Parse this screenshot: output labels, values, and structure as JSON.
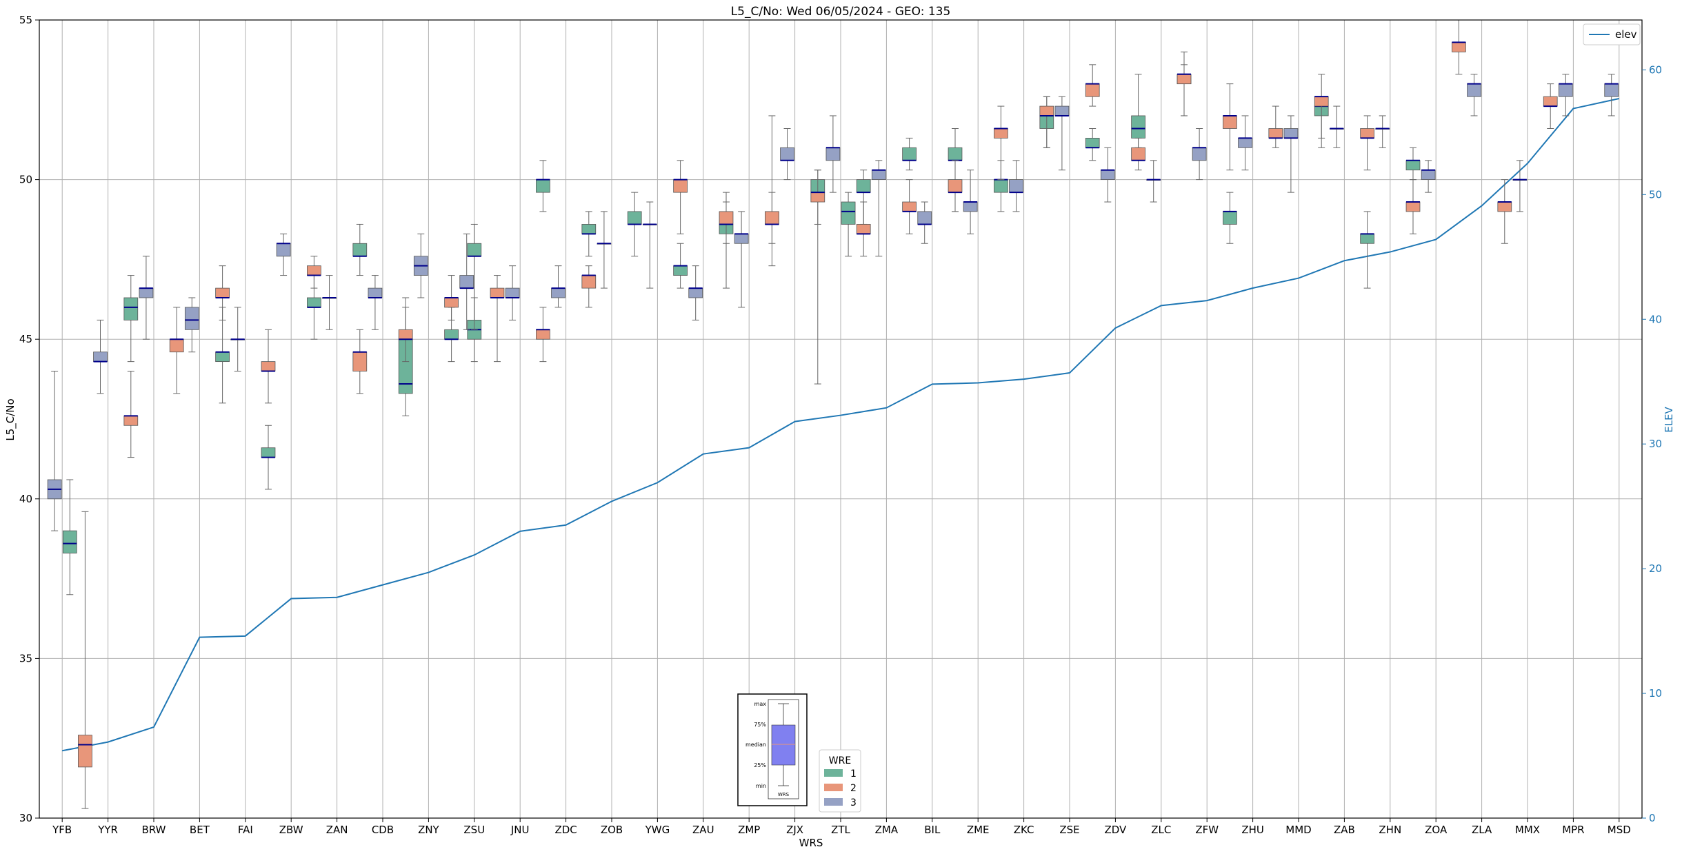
{
  "chart_data": {
    "type": "box",
    "title": "L5_C/No: Wed 06/05/2024 - GEO: 135",
    "xlabel": "WRS",
    "ylabel": "L5_C/No",
    "y2label": "ELEV",
    "ylim": [
      30,
      55
    ],
    "y2lim": [
      0,
      64
    ],
    "yticks": [
      30,
      35,
      40,
      45,
      50,
      55
    ],
    "y2ticks": [
      0,
      10,
      20,
      30,
      40,
      50,
      60
    ],
    "grid": true,
    "categories": [
      "YFB",
      "YYR",
      "BRW",
      "BET",
      "FAI",
      "ZBW",
      "ZAN",
      "CDB",
      "ZNY",
      "ZSU",
      "JNU",
      "ZDC",
      "ZOB",
      "YWG",
      "ZAU",
      "ZMP",
      "ZJX",
      "ZTL",
      "ZMA",
      "BIL",
      "ZME",
      "ZKC",
      "ZSE",
      "ZDV",
      "ZLC",
      "ZFW",
      "ZHU",
      "MMD",
      "ZAB",
      "ZHN",
      "ZOA",
      "ZLA",
      "MMX",
      "MPR",
      "MSD"
    ],
    "colors": {
      "1": "#6db39a",
      "2": "#e8967a",
      "3": "#95a1c4",
      "median": "#00008b",
      "whisker": "#666666",
      "elev": "#1f77b4",
      "axis2": "#1f77b4"
    },
    "boxes": {
      "1": [
        [
          37,
          38.3,
          38.6,
          39,
          40.6
        ],
        [
          44.3,
          45.6,
          46,
          46.3,
          47
        ],
        [
          43,
          44.3,
          44.6,
          44.6,
          46
        ],
        [
          40.3,
          41.3,
          41.3,
          41.6,
          42.3
        ],
        [
          45,
          46,
          46,
          46.3,
          47
        ],
        [
          47,
          47.6,
          47.6,
          48,
          48.6
        ],
        [
          42.6,
          43.3,
          43.6,
          45,
          46.3
        ],
        [
          44.3,
          45,
          45,
          45.3,
          46
        ],
        [
          44.3,
          45,
          45.3,
          45.6,
          46.3
        ],
        [
          45.3,
          47.6,
          47.6,
          48,
          48.6
        ],
        [
          49,
          49.6,
          50,
          50,
          50.6
        ],
        [
          47.6,
          48.3,
          48.3,
          48.6,
          49
        ],
        [
          47.6,
          48.6,
          48.6,
          49,
          49.6
        ],
        [
          46.6,
          47,
          47.3,
          47.3,
          48
        ],
        [
          46.6,
          48.3,
          48.6,
          48.6,
          49.3
        ],
        [
          47.3,
          48.6,
          48.6,
          49,
          49.6
        ],
        [
          48.6,
          49.6,
          49.6,
          50,
          50.3
        ],
        [
          47.6,
          48.6,
          49,
          49.3,
          49.6
        ],
        [
          48.6,
          49.6,
          49.6,
          50,
          50.3
        ],
        [
          50.3,
          50.6,
          50.6,
          51,
          51.3
        ],
        [
          49,
          50.6,
          50.6,
          51,
          51.6
        ],
        [
          49,
          49.6,
          50,
          50,
          50.6
        ],
        [
          51,
          51.6,
          52,
          52,
          52.6
        ],
        [
          50.6,
          51,
          51,
          51.3,
          51.6
        ],
        [
          51,
          51.3,
          51.6,
          52,
          53.3
        ],
        [
          52,
          53,
          53.3,
          53.3,
          53.6
        ],
        [
          48,
          48.6,
          49,
          49,
          49.6
        ],
        [
          51.3,
          52,
          52.3,
          52.3,
          52.6
        ],
        [
          46.6,
          48,
          48.3,
          48.3,
          49
        ],
        [
          50,
          50.3,
          50.6,
          50.6,
          51
        ]
      ],
      "2": [
        [
          30.3,
          31.6,
          32.3,
          32.6,
          39.6
        ],
        [
          41.3,
          42.3,
          42.6,
          42.6,
          44
        ],
        [
          43.3,
          44.6,
          45,
          45,
          46
        ],
        [
          45.6,
          46.3,
          46.3,
          46.6,
          47.3
        ],
        [
          43,
          44,
          44,
          44.3,
          45.3
        ],
        [
          46.6,
          47,
          47,
          47.3,
          47.6
        ],
        [
          43.3,
          44,
          44.6,
          44.6,
          45.3
        ],
        [
          44.3,
          45,
          45,
          45.3,
          46
        ],
        [
          45.6,
          46,
          46.3,
          46.3,
          47
        ],
        [
          44.3,
          46.3,
          46.3,
          46.6,
          47
        ],
        [
          44.3,
          45,
          45.3,
          45.3,
          46
        ],
        [
          46,
          46.6,
          47,
          47,
          47.3
        ],
        [
          48.3,
          49.6,
          50,
          50,
          50.6
        ],
        [
          48,
          48.6,
          48.6,
          49,
          49.6
        ],
        [
          48,
          48.6,
          48.6,
          49,
          52
        ],
        [
          43.6,
          49.3,
          49.6,
          49.6,
          50.3
        ],
        [
          47.6,
          48.3,
          48.3,
          48.6,
          49.3
        ],
        [
          48.3,
          49,
          49,
          49.3,
          50
        ],
        [
          49,
          49.6,
          49.6,
          50,
          50.6
        ],
        [
          50,
          51.3,
          51.6,
          51.6,
          52.3
        ],
        [
          51,
          52,
          52,
          52.3,
          52.6
        ],
        [
          52.3,
          52.6,
          53,
          53,
          53.6
        ],
        [
          50.3,
          50.6,
          50.6,
          51,
          51.3
        ],
        [
          52,
          53,
          53.3,
          53.3,
          54
        ],
        [
          50.3,
          51.6,
          52,
          52,
          53
        ],
        [
          51,
          51.3,
          51.3,
          51.6,
          52.3
        ],
        [
          51,
          52.3,
          52.6,
          52.6,
          53.3
        ],
        [
          50.3,
          51.3,
          51.3,
          51.6,
          52
        ],
        [
          48.3,
          49,
          49.3,
          49.3,
          50
        ],
        [
          53.3,
          54,
          54.3,
          54.3,
          55
        ],
        [
          48,
          49,
          49.3,
          49.3,
          50
        ],
        [
          51.6,
          52.3,
          52.3,
          52.6,
          53
        ]
      ],
      "3": [
        [
          39,
          40,
          40.3,
          40.6,
          44
        ],
        [
          43.3,
          44.3,
          44.3,
          44.6,
          45.6
        ],
        [
          45,
          46.3,
          46.6,
          46.6,
          47.6
        ],
        [
          44.6,
          45.3,
          45.6,
          46,
          46.3
        ],
        [
          44,
          45,
          45,
          45,
          46
        ],
        [
          47,
          47.6,
          48,
          48,
          48.3
        ],
        [
          45.3,
          46.3,
          46.3,
          46.3,
          47
        ],
        [
          45.3,
          46.3,
          46.3,
          46.6,
          47
        ],
        [
          46.3,
          47,
          47.3,
          47.6,
          48.3
        ],
        [
          45.3,
          46.6,
          46.6,
          47,
          48.3
        ],
        [
          45.6,
          46.3,
          46.3,
          46.6,
          47.3
        ],
        [
          46,
          46.3,
          46.6,
          46.6,
          47.3
        ],
        [
          46.6,
          48,
          48,
          48,
          49
        ],
        [
          46.6,
          48.6,
          48.6,
          48.6,
          49.3
        ],
        [
          45.6,
          46.3,
          46.6,
          46.6,
          47.3
        ],
        [
          46,
          48,
          48.3,
          48.3,
          49
        ],
        [
          50,
          50.6,
          50.6,
          51,
          51.6
        ],
        [
          49.6,
          50.6,
          51,
          51,
          52
        ],
        [
          47.6,
          50,
          50.3,
          50.3,
          50.6
        ],
        [
          48,
          48.6,
          48.6,
          49,
          49.3
        ],
        [
          48.3,
          49,
          49.3,
          49.3,
          50.3
        ],
        [
          49,
          49.6,
          49.6,
          50,
          50.6
        ],
        [
          50.3,
          52,
          52,
          52.3,
          52.6
        ],
        [
          49.3,
          50,
          50.3,
          50.3,
          51
        ],
        [
          49.3,
          50,
          50,
          50,
          50.6
        ],
        [
          50,
          50.6,
          51,
          51,
          51.6
        ],
        [
          50.3,
          51,
          51.3,
          51.3,
          52
        ],
        [
          49.6,
          51.3,
          51.3,
          51.6,
          52
        ],
        [
          51,
          51.6,
          51.6,
          51.6,
          52.3
        ],
        [
          51,
          51.6,
          51.6,
          51.6,
          52
        ],
        [
          49.6,
          50,
          50.3,
          50.3,
          50.6
        ],
        [
          52,
          52.6,
          53,
          53,
          53.3
        ],
        [
          49,
          50,
          50,
          50,
          50.6
        ],
        [
          52,
          52.6,
          53,
          53,
          53.3
        ],
        [
          52,
          52.6,
          53,
          53,
          53.3
        ]
      ]
    },
    "box_positions": {
      "1": [
        0.667,
        2,
        4,
        5,
        6,
        7,
        8,
        9,
        9.5,
        9.5,
        11,
        12,
        13,
        14,
        15,
        16,
        17,
        17.667,
        18,
        19,
        20,
        21,
        22,
        23,
        24,
        25,
        26,
        28,
        29,
        30
      ],
      "2": [
        1,
        2,
        3,
        4,
        5,
        6,
        7,
        8,
        9,
        10,
        11,
        12,
        14,
        15,
        16,
        17,
        18,
        19,
        20,
        21,
        22,
        23,
        24,
        25,
        26,
        27,
        28,
        29,
        30,
        31,
        32,
        33
      ],
      "3": [
        0.333,
        1.333,
        2.333,
        3.333,
        4.333,
        5.333,
        6.333,
        7.333,
        8.333,
        9.333,
        10.333,
        11.333,
        12.333,
        13.333,
        14.333,
        15.333,
        16.333,
        17.333,
        18.333,
        19.333,
        20.333,
        21.333,
        22.333,
        23.333,
        24.333,
        25.333,
        26.333,
        27.333,
        28.333,
        29.333,
        30.333,
        31.333,
        32.333,
        33.333,
        34.333
      ]
    },
    "elev": [
      5.4,
      6.1,
      7.3,
      14.5,
      14.6,
      17.6,
      17.7,
      18.7,
      19.7,
      21.1,
      23.0,
      23.5,
      25.4,
      26.9,
      29.2,
      29.7,
      31.8,
      32.3,
      32.9,
      34.8,
      34.9,
      35.2,
      35.7,
      39.3,
      41.1,
      41.5,
      42.5,
      43.3,
      44.7,
      45.4,
      46.4,
      49.1,
      52.5,
      56.9,
      57.7
    ],
    "legend_series": {
      "label": "elev"
    },
    "legend_wre": {
      "title": "WRE",
      "items": [
        "1",
        "2",
        "3"
      ]
    },
    "inset": {
      "labels": [
        "max",
        "75%",
        "median",
        "25%",
        "min"
      ],
      "xlabel": "WRS"
    }
  }
}
